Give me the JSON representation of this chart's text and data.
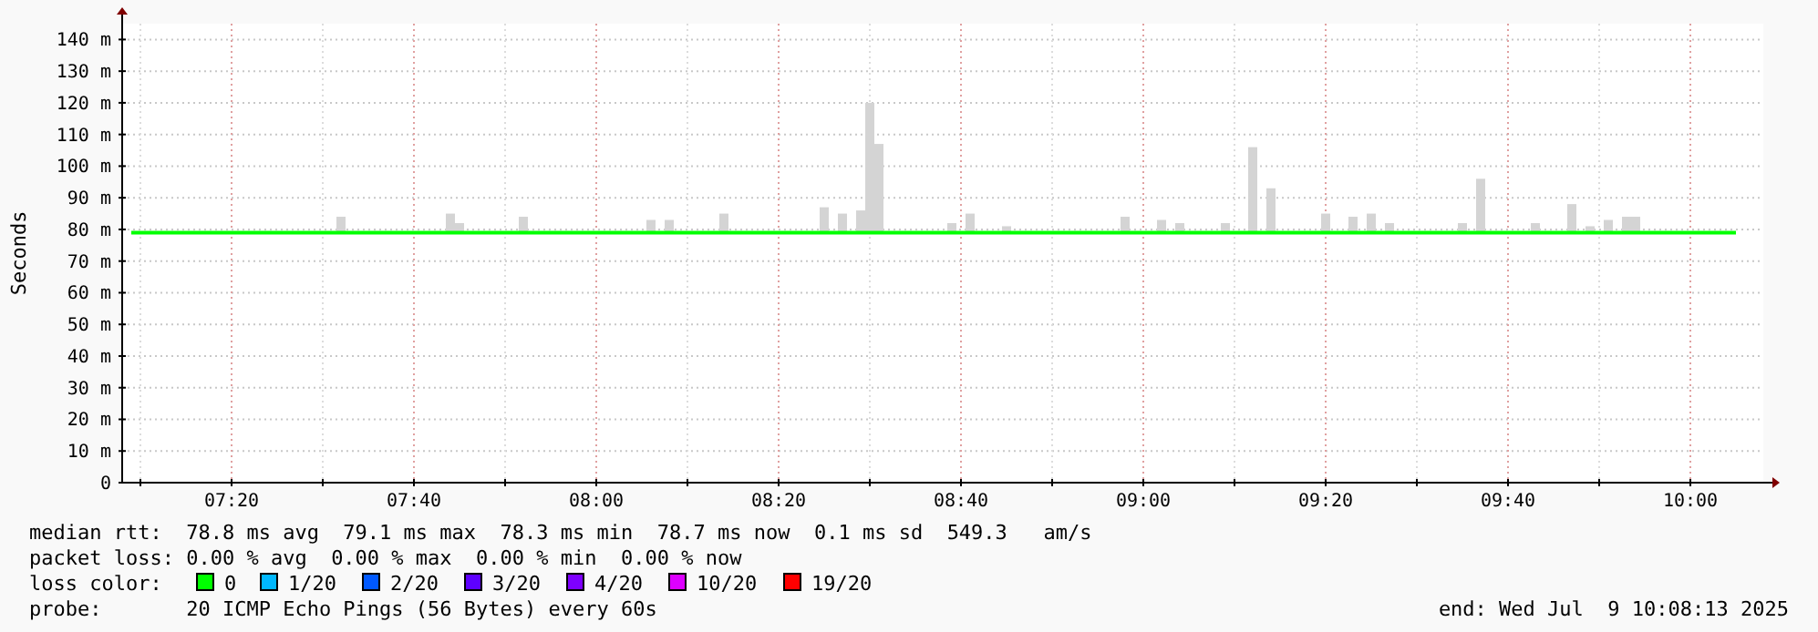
{
  "chart_data": {
    "type": "line",
    "ylabel": "Seconds",
    "legend_title": "loss color:",
    "legend": "bottom",
    "grid": true,
    "xlim": [
      "2025-07-09T07:08",
      "2025-07-09T10:08"
    ],
    "xticks": [
      {
        "value": "2025-07-09T07:10",
        "label": null
      },
      {
        "value": "2025-07-09T07:20",
        "label": "07:20"
      },
      {
        "value": "2025-07-09T07:30",
        "label": null
      },
      {
        "value": "2025-07-09T07:40",
        "label": "07:40"
      },
      {
        "value": "2025-07-09T07:50",
        "label": null
      },
      {
        "value": "2025-07-09T08:00",
        "label": "08:00"
      },
      {
        "value": "2025-07-09T08:10",
        "label": null
      },
      {
        "value": "2025-07-09T08:20",
        "label": "08:20"
      },
      {
        "value": "2025-07-09T08:30",
        "label": null
      },
      {
        "value": "2025-07-09T08:40",
        "label": "08:40"
      },
      {
        "value": "2025-07-09T08:50",
        "label": null
      },
      {
        "value": "2025-07-09T09:00",
        "label": "09:00"
      },
      {
        "value": "2025-07-09T09:10",
        "label": null
      },
      {
        "value": "2025-07-09T09:20",
        "label": "09:20"
      },
      {
        "value": "2025-07-09T09:30",
        "label": null
      },
      {
        "value": "2025-07-09T09:40",
        "label": "09:40"
      },
      {
        "value": "2025-07-09T09:50",
        "label": null
      },
      {
        "value": "2025-07-09T10:00",
        "label": "10:00"
      }
    ],
    "ylim": [
      0,
      145
    ],
    "yticks": [
      0,
      {
        "value": 10,
        "label": "10 m"
      },
      {
        "value": 20,
        "label": "20 m"
      },
      {
        "value": 30,
        "label": "30 m"
      },
      {
        "value": 40,
        "label": "40 m"
      },
      {
        "value": 50,
        "label": "50 m"
      },
      {
        "value": 60,
        "label": "60 m"
      },
      {
        "value": 70,
        "label": "70 m"
      },
      {
        "value": 80,
        "label": "80 m"
      },
      {
        "value": 90,
        "label": "90 m"
      },
      {
        "value": 100,
        "label": "100 m"
      },
      {
        "value": 110,
        "label": "110 m"
      },
      {
        "value": 120,
        "label": "120 m"
      },
      {
        "value": 130,
        "label": "130 m"
      },
      {
        "value": 140,
        "label": "140 m"
      }
    ],
    "series": [
      {
        "type": "bar",
        "color": "#d4d4d4",
        "x": [
          "2025-07-09T07:32",
          "2025-07-09T07:44",
          "2025-07-09T07:45",
          "2025-07-09T07:52",
          "2025-07-09T08:06",
          "2025-07-09T08:08",
          "2025-07-09T08:14",
          "2025-07-09T08:25",
          "2025-07-09T08:27",
          "2025-07-09T08:29",
          "2025-07-09T08:30",
          "2025-07-09T08:31",
          "2025-07-09T08:39",
          "2025-07-09T08:41",
          "2025-07-09T08:45",
          "2025-07-09T08:58",
          "2025-07-09T09:02",
          "2025-07-09T09:04",
          "2025-07-09T09:09",
          "2025-07-09T09:12",
          "2025-07-09T09:14",
          "2025-07-09T09:20",
          "2025-07-09T09:23",
          "2025-07-09T09:25",
          "2025-07-09T09:27",
          "2025-07-09T09:35",
          "2025-07-09T09:37",
          "2025-07-09T09:43",
          "2025-07-09T09:47",
          "2025-07-09T09:49",
          "2025-07-09T09:51",
          "2025-07-09T09:53",
          "2025-07-09T09:54"
        ],
        "base": [
          79,
          79,
          79,
          79,
          79,
          79,
          79,
          79,
          79,
          79,
          79,
          79,
          79,
          79,
          79,
          79,
          79,
          79,
          79,
          79,
          79,
          79,
          79,
          79,
          79,
          79,
          79,
          79,
          79,
          79,
          79,
          79,
          79
        ],
        "values": [
          5,
          6,
          3,
          5,
          4,
          4,
          6,
          8,
          6,
          7,
          41,
          28,
          3,
          6,
          2,
          5,
          4,
          3,
          3,
          27,
          14,
          6,
          5,
          6,
          3,
          3,
          17,
          3,
          9,
          2,
          4,
          5,
          5
        ]
      },
      {
        "name": "0",
        "color": "#00ff00",
        "x": [
          "2025-07-09T07:09",
          "2025-07-09T07:14",
          "2025-07-09T07:19",
          "2025-07-09T07:24",
          "2025-07-09T07:29",
          "2025-07-09T07:34",
          "2025-07-09T07:39",
          "2025-07-09T07:44",
          "2025-07-09T07:49",
          "2025-07-09T07:54",
          "2025-07-09T07:59",
          "2025-07-09T08:04",
          "2025-07-09T08:09",
          "2025-07-09T08:14",
          "2025-07-09T08:19",
          "2025-07-09T08:24",
          "2025-07-09T08:29",
          "2025-07-09T08:34",
          "2025-07-09T08:39",
          "2025-07-09T08:44",
          "2025-07-09T08:49",
          "2025-07-09T08:54",
          "2025-07-09T08:59",
          "2025-07-09T09:04",
          "2025-07-09T09:09",
          "2025-07-09T09:14",
          "2025-07-09T09:19",
          "2025-07-09T09:24",
          "2025-07-09T09:29",
          "2025-07-09T09:34",
          "2025-07-09T09:39",
          "2025-07-09T09:44",
          "2025-07-09T09:49",
          "2025-07-09T09:54",
          "2025-07-09T09:59",
          "2025-07-09T10:05"
        ],
        "values": [
          79,
          79,
          79,
          79,
          79,
          79,
          79,
          79,
          79,
          79,
          79,
          79,
          79,
          79,
          79,
          79,
          79,
          79,
          79,
          79,
          79,
          79,
          79,
          79,
          79,
          79,
          79,
          79,
          79,
          79,
          79,
          79,
          79,
          79,
          79,
          79
        ]
      },
      {
        "name": "1/20",
        "color": "#00b8ff"
      },
      {
        "name": "2/20",
        "color": "#0059ff"
      },
      {
        "name": "3/20",
        "color": "#5e00ff"
      },
      {
        "name": "4/20",
        "color": "#7e00ff"
      },
      {
        "name": "10/20",
        "color": "#dd00ff"
      },
      {
        "name": "19/20",
        "color": "#ff0000"
      }
    ],
    "annotations": [
      "median rtt:  78.8 ms avg  79.1 ms max  78.3 ms min  78.7 ms now  0.1 ms sd  549.3   am/s",
      "packet loss: 0.00 % avg  0.00 % max  0.00 % min  0.00 % now",
      "probe:       20 ICMP Echo Pings (56 Bytes) every 60s",
      "end: Wed Jul  9 10:08:13 2025"
    ]
  }
}
